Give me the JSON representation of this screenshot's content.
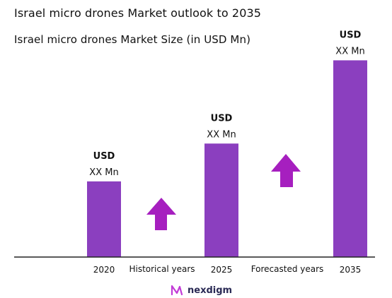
{
  "title": "Israel micro drones Market outlook to 2035",
  "chart_data": {
    "type": "bar",
    "title": "Israel micro drones Market Size (in USD Mn)",
    "categories": [
      "2020",
      "2025",
      "2035"
    ],
    "values": [
      1.0,
      1.5,
      2.6
    ],
    "value_labels": [
      {
        "currency": "USD",
        "amount": "XX Mn"
      },
      {
        "currency": "USD",
        "amount": "XX Mn"
      },
      {
        "currency": "USD",
        "amount": "XX Mn"
      }
    ],
    "ylim": [
      0,
      2.8
    ],
    "grid": false,
    "legend": "none",
    "bar_color": "#8b3fbf",
    "period_labels": [
      "Historical years",
      "Forecasted years"
    ],
    "period_arrow_color": "#a61fbf",
    "gridlines": false
  },
  "brand": {
    "name": "nexdigm",
    "logo_icon": "nexdigm-logo-icon",
    "color": "#2a2a55"
  }
}
